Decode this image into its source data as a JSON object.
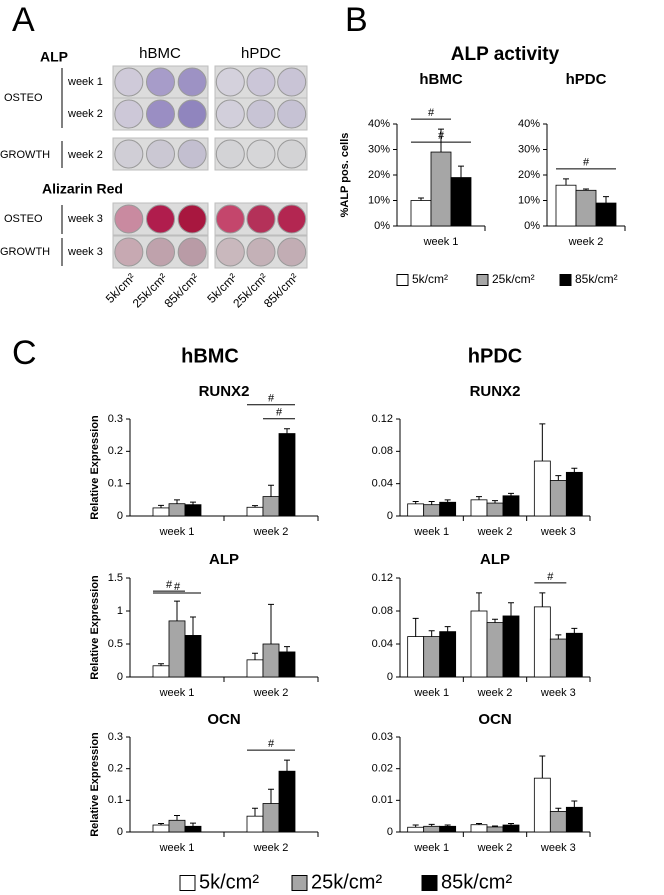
{
  "panel_labels": [
    "A",
    "B",
    "C"
  ],
  "panel_a": {
    "title": "ALP",
    "cell_types": [
      "hBMC",
      "hPDC"
    ],
    "rows": [
      {
        "group": "OSTEO",
        "weeks": [
          "week 1",
          "week 2"
        ]
      },
      {
        "group": "GROWTH",
        "weeks": [
          "week 2"
        ]
      }
    ],
    "stain_title": "Alizarin Red",
    "stain_rows": [
      {
        "group": "OSTEO",
        "weeks": [
          "week 3"
        ]
      },
      {
        "group": "GROWTH",
        "weeks": [
          "week 3"
        ]
      }
    ],
    "densities": [
      "5k/cm²",
      "25k/cm²",
      "85k/cm²"
    ]
  },
  "panel_b_title": "ALP activity",
  "panel_c_headers": [
    "hBMC",
    "hPDC"
  ],
  "legend": [
    {
      "name": "5k/cm²",
      "color": "#ffffff"
    },
    {
      "name": "25k/cm²",
      "color": "#a6a6a6"
    },
    {
      "name": "85k/cm²",
      "color": "#000000"
    }
  ],
  "chart_data": [
    {
      "type": "bar",
      "title": "hBMC",
      "ylabel": "%ALP pos. cells",
      "categories": [
        "week 1"
      ],
      "series": [
        {
          "values": [
            10
          ],
          "errors": [
            1
          ]
        },
        {
          "values": [
            29
          ],
          "errors": [
            9
          ]
        },
        {
          "values": [
            19
          ],
          "errors": [
            4.5
          ]
        }
      ],
      "ylim": [
        0,
        40
      ],
      "yticks": [
        {
          "value": 0,
          "label": "0%"
        },
        {
          "value": 10,
          "label": "10%"
        },
        {
          "value": 20,
          "label": "20%"
        },
        {
          "value": 30,
          "label": "30%"
        },
        {
          "value": 40,
          "label": "40%"
        }
      ],
      "annotations": [
        {
          "label": "#",
          "category": 0,
          "series": [
            0,
            1
          ]
        },
        {
          "label": "#",
          "category": 0,
          "series": [
            0,
            2
          ]
        }
      ]
    },
    {
      "type": "bar",
      "title": "hPDC",
      "categories": [
        "week 2"
      ],
      "series": [
        {
          "values": [
            16
          ],
          "errors": [
            2.5
          ]
        },
        {
          "values": [
            14
          ],
          "errors": [
            0.5
          ]
        },
        {
          "values": [
            9
          ],
          "errors": [
            2.5
          ]
        }
      ],
      "ylim": [
        0,
        40
      ],
      "yticks": [
        {
          "value": 0,
          "label": "0%"
        },
        {
          "value": 10,
          "label": "10%"
        },
        {
          "value": 20,
          "label": "20%"
        },
        {
          "value": 30,
          "label": "30%"
        },
        {
          "value": 40,
          "label": "40%"
        }
      ],
      "annotations": [
        {
          "label": "#",
          "category": 0,
          "series": [
            0,
            2
          ]
        }
      ]
    },
    {
      "type": "bar",
      "title": "RUNX2",
      "ylabel": "Relative Expression",
      "categories": [
        "week 1",
        "week 2"
      ],
      "series": [
        {
          "values": [
            0.025,
            0.027
          ],
          "errors": [
            0.008,
            0.005
          ]
        },
        {
          "values": [
            0.038,
            0.06
          ],
          "errors": [
            0.012,
            0.035
          ]
        },
        {
          "values": [
            0.035,
            0.255
          ],
          "errors": [
            0.008,
            0.015
          ]
        }
      ],
      "ylim": [
        0,
        0.3
      ],
      "yticks": [
        0,
        0.1,
        0.2,
        0.3
      ],
      "annotations": [
        {
          "label": "#",
          "category": 1,
          "series": [
            1,
            2
          ]
        },
        {
          "label": "#",
          "category": 1,
          "series": [
            0,
            2
          ]
        }
      ]
    },
    {
      "type": "bar",
      "title": "RUNX2",
      "categories": [
        "week 1",
        "week 2",
        "week 3"
      ],
      "series": [
        {
          "values": [
            0.015,
            0.02,
            0.068
          ],
          "errors": [
            0.003,
            0.004,
            0.046
          ]
        },
        {
          "values": [
            0.014,
            0.016,
            0.044
          ],
          "errors": [
            0.004,
            0.003,
            0.006
          ]
        },
        {
          "values": [
            0.017,
            0.025,
            0.054
          ],
          "errors": [
            0.003,
            0.003,
            0.005
          ]
        }
      ],
      "ylim": [
        0,
        0.12
      ],
      "yticks": [
        0,
        0.04,
        0.08,
        0.12
      ],
      "annotations": []
    },
    {
      "type": "bar",
      "title": "ALP",
      "ylabel": "Relative Expression",
      "categories": [
        "week 1",
        "week 2"
      ],
      "series": [
        {
          "values": [
            0.17,
            0.26
          ],
          "errors": [
            0.03,
            0.1
          ]
        },
        {
          "values": [
            0.85,
            0.5
          ],
          "errors": [
            0.3,
            0.6
          ]
        },
        {
          "values": [
            0.63,
            0.38
          ],
          "errors": [
            0.28,
            0.08
          ]
        }
      ],
      "ylim": [
        0,
        1.5
      ],
      "yticks": [
        0,
        0.5,
        1,
        1.5
      ],
      "annotations": [
        {
          "label": "#",
          "category": 0,
          "series": [
            0,
            1
          ]
        },
        {
          "label": "#",
          "category": 0,
          "series": [
            0,
            2
          ]
        }
      ]
    },
    {
      "type": "bar",
      "title": "ALP",
      "categories": [
        "week 1",
        "week 2",
        "week 3"
      ],
      "series": [
        {
          "values": [
            0.049,
            0.08,
            0.085
          ],
          "errors": [
            0.022,
            0.022,
            0.017
          ]
        },
        {
          "values": [
            0.049,
            0.066,
            0.046
          ],
          "errors": [
            0.007,
            0.004,
            0.005
          ]
        },
        {
          "values": [
            0.055,
            0.074,
            0.053
          ],
          "errors": [
            0.006,
            0.016,
            0.006
          ]
        }
      ],
      "ylim": [
        0,
        0.12
      ],
      "yticks": [
        0,
        0.04,
        0.08,
        0.12
      ],
      "annotations": [
        {
          "label": "#",
          "category": 2,
          "series": [
            0,
            1
          ]
        }
      ]
    },
    {
      "type": "bar",
      "title": "OCN",
      "ylabel": "Relative Expression",
      "categories": [
        "week 1",
        "week 2"
      ],
      "series": [
        {
          "values": [
            0.022,
            0.05
          ],
          "errors": [
            0.005,
            0.025
          ]
        },
        {
          "values": [
            0.037,
            0.09
          ],
          "errors": [
            0.015,
            0.045
          ]
        },
        {
          "values": [
            0.018,
            0.192
          ],
          "errors": [
            0.01,
            0.035
          ]
        }
      ],
      "ylim": [
        0,
        0.3
      ],
      "yticks": [
        0,
        0.1,
        0.2,
        0.3
      ],
      "annotations": [
        {
          "label": "#",
          "category": 1,
          "series": [
            0,
            2
          ]
        }
      ]
    },
    {
      "type": "bar",
      "title": "OCN",
      "categories": [
        "week 1",
        "week 2",
        "week 3"
      ],
      "series": [
        {
          "values": [
            0.0015,
            0.0023,
            0.017
          ],
          "errors": [
            0.0007,
            0.0004,
            0.007
          ]
        },
        {
          "values": [
            0.0018,
            0.0016,
            0.0065
          ],
          "errors": [
            0.0006,
            0.0003,
            0.001
          ]
        },
        {
          "values": [
            0.0018,
            0.0022,
            0.0078
          ],
          "errors": [
            0.0004,
            0.0005,
            0.002
          ]
        }
      ],
      "ylim": [
        0,
        0.03
      ],
      "yticks": [
        0,
        0.01,
        0.02,
        0.03
      ],
      "annotations": []
    }
  ]
}
